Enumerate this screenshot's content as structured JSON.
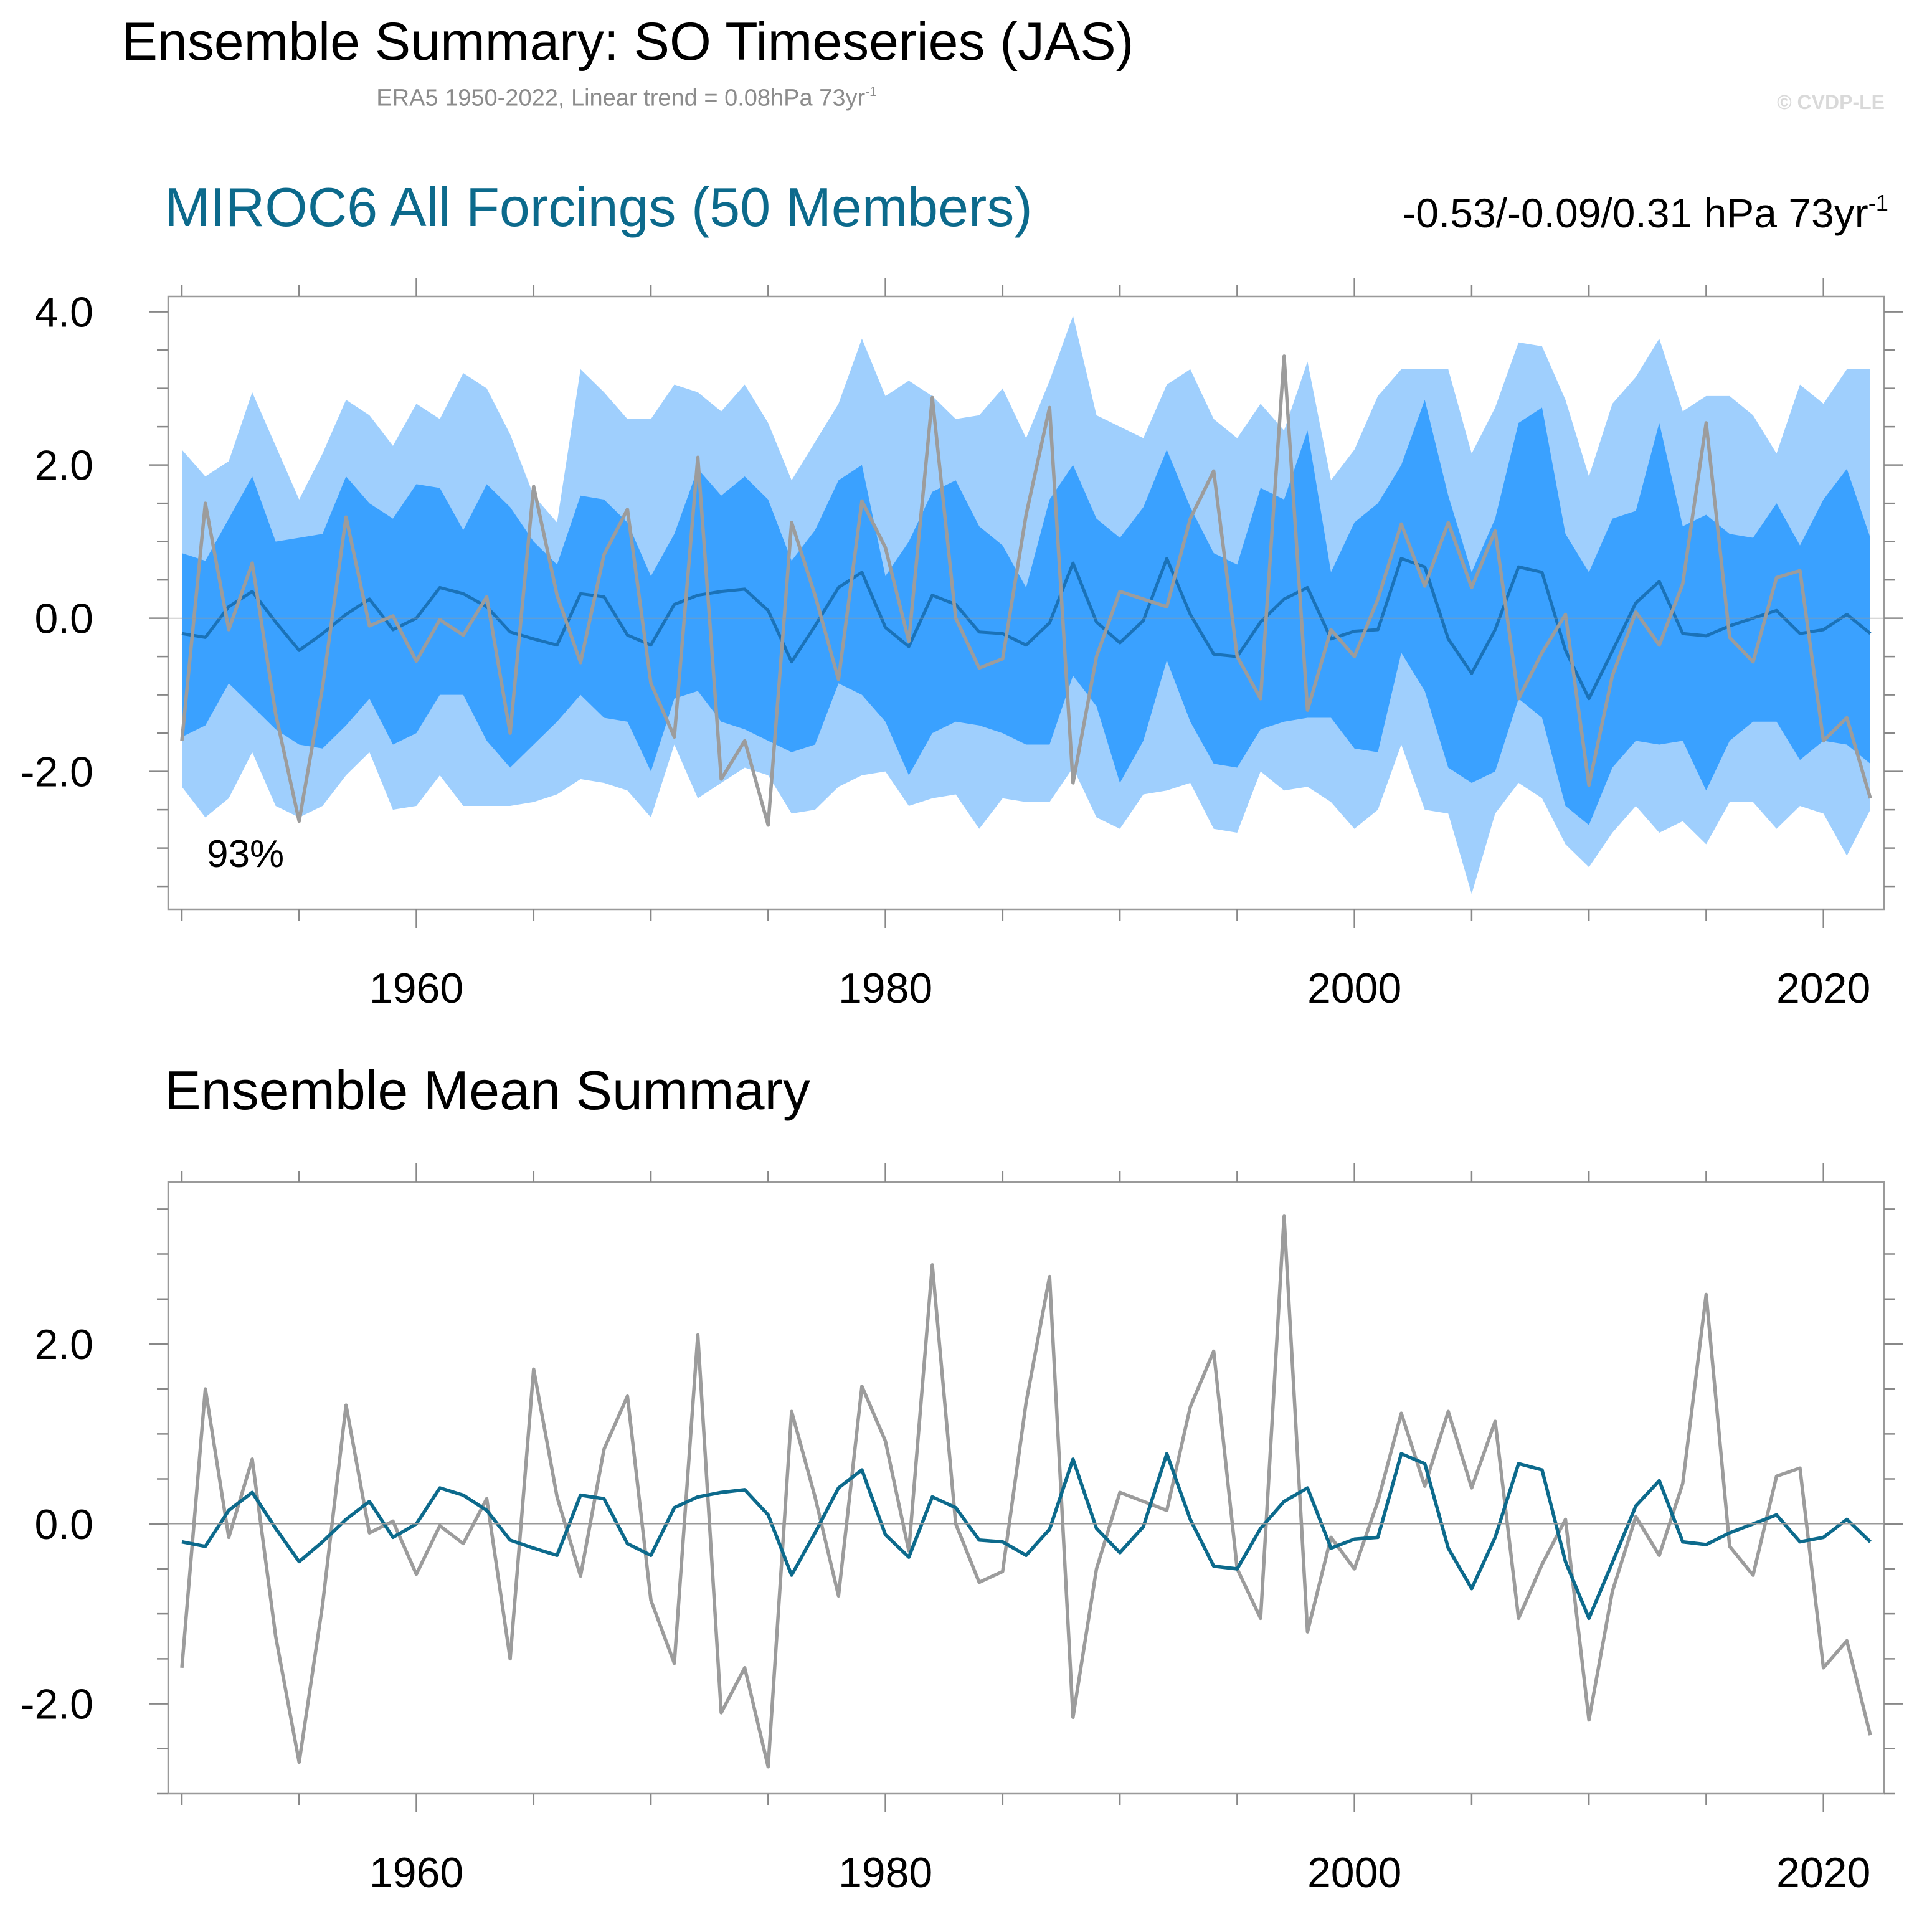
{
  "header": {
    "title": "Ensemble Summary: SO Timeseries (JAS)",
    "subtitle_prefix": "ERA5 1950-2022, Linear trend = 0.08hPa 73yr",
    "subtitle_sup": "-1",
    "copyright": "© CVDP-LE"
  },
  "colors": {
    "band_outer": "#9fcffd",
    "band_inner": "#3aa1ff",
    "ensemble_mean_top": "#1a72b8",
    "ensemble_mean_bottom": "#0c6a8c",
    "observations": "#9c9c9c",
    "frame": "#9a9a9a",
    "title_accent": "#0c6a8c"
  },
  "panel1": {
    "title": "MIROC6 All Forcings (50 Members)",
    "trend_text": "-0.53/-0.09/0.31 hPa 73yr",
    "trend_sup": "-1",
    "percent_label": "93%"
  },
  "panel2": {
    "title": "Ensemble Mean Summary"
  },
  "chart_data": [
    {
      "type": "area",
      "xlim": [
        1950,
        2022
      ],
      "ylim": [
        -3.8,
        4.2
      ],
      "xticks": [
        1960,
        1980,
        2000,
        2020
      ],
      "xtick_labels": [
        "1960",
        "1980",
        "2000",
        "2020"
      ],
      "yticks": [
        4.0,
        2.0,
        0.0,
        -2.0
      ],
      "ytick_labels": [
        "4.0",
        "2.0",
        "0.0",
        "-2.0"
      ],
      "zero_line": true,
      "x": [
        1950,
        1951,
        1952,
        1953,
        1954,
        1955,
        1956,
        1957,
        1958,
        1959,
        1960,
        1961,
        1962,
        1963,
        1964,
        1965,
        1966,
        1967,
        1968,
        1969,
        1970,
        1971,
        1972,
        1973,
        1974,
        1975,
        1976,
        1977,
        1978,
        1979,
        1980,
        1981,
        1982,
        1983,
        1984,
        1985,
        1986,
        1987,
        1988,
        1989,
        1990,
        1991,
        1992,
        1993,
        1994,
        1995,
        1996,
        1997,
        1998,
        1999,
        2000,
        2001,
        2002,
        2003,
        2004,
        2005,
        2006,
        2007,
        2008,
        2009,
        2010,
        2011,
        2012,
        2013,
        2014,
        2015,
        2016,
        2017,
        2018,
        2019,
        2020,
        2021,
        2022
      ],
      "outer_upper": [
        2.2,
        1.85,
        2.05,
        2.95,
        2.25,
        1.55,
        2.15,
        2.85,
        2.65,
        2.25,
        2.8,
        2.6,
        3.2,
        3.0,
        2.4,
        1.6,
        1.25,
        3.25,
        2.95,
        2.6,
        2.6,
        3.05,
        2.95,
        2.7,
        3.05,
        2.55,
        1.8,
        2.3,
        2.8,
        3.65,
        2.9,
        3.1,
        2.9,
        2.6,
        2.65,
        3.0,
        2.35,
        3.1,
        3.95,
        2.65,
        2.5,
        2.35,
        3.05,
        3.25,
        2.6,
        2.35,
        2.8,
        2.45,
        3.35,
        1.8,
        2.2,
        2.9,
        3.25,
        3.25,
        3.25,
        2.15,
        2.75,
        3.6,
        3.55,
        2.85,
        1.85,
        2.8,
        3.15,
        3.65,
        2.7,
        2.9,
        2.9,
        2.65,
        2.15,
        3.05,
        2.8,
        3.25,
        3.25
      ],
      "inner_upper": [
        0.85,
        0.75,
        1.3,
        1.85,
        1.0,
        1.05,
        1.1,
        1.85,
        1.5,
        1.3,
        1.75,
        1.7,
        1.15,
        1.75,
        1.45,
        1.0,
        0.7,
        1.6,
        1.55,
        1.25,
        0.55,
        1.1,
        1.95,
        1.6,
        1.85,
        1.55,
        0.75,
        1.15,
        1.8,
        2.0,
        0.55,
        1.0,
        1.65,
        1.8,
        1.2,
        0.95,
        0.4,
        1.55,
        2.0,
        1.3,
        1.05,
        1.45,
        2.2,
        1.45,
        0.85,
        0.7,
        1.7,
        1.55,
        2.45,
        0.6,
        1.25,
        1.5,
        2.0,
        2.85,
        1.6,
        0.6,
        1.3,
        2.55,
        2.75,
        1.1,
        0.6,
        1.3,
        1.4,
        2.55,
        1.2,
        1.35,
        1.1,
        1.05,
        1.5,
        0.95,
        1.55,
        1.95,
        1.05
      ],
      "ensemble_mean": [
        -0.2,
        -0.25,
        0.15,
        0.35,
        -0.05,
        -0.42,
        -0.2,
        0.05,
        0.25,
        -0.15,
        0.0,
        0.4,
        0.32,
        0.15,
        -0.18,
        -0.27,
        -0.35,
        0.32,
        0.28,
        -0.22,
        -0.35,
        0.18,
        0.3,
        0.35,
        0.38,
        0.1,
        -0.57,
        -0.1,
        0.4,
        0.6,
        -0.12,
        -0.37,
        0.3,
        0.18,
        -0.18,
        -0.2,
        -0.35,
        -0.06,
        0.72,
        -0.05,
        -0.32,
        -0.03,
        0.78,
        0.05,
        -0.47,
        -0.5,
        -0.05,
        0.25,
        0.4,
        -0.27,
        -0.17,
        -0.15,
        0.78,
        0.67,
        -0.27,
        -0.72,
        -0.15,
        0.67,
        0.6,
        -0.42,
        -1.05,
        -0.43,
        0.2,
        0.48,
        -0.2,
        -0.23,
        -0.1,
        0.0,
        0.1,
        -0.2,
        -0.15,
        0.05,
        -0.2
      ],
      "inner_lower": [
        -1.55,
        -1.4,
        -0.85,
        -1.15,
        -1.45,
        -1.65,
        -1.7,
        -1.4,
        -1.05,
        -1.65,
        -1.5,
        -1.0,
        -1.0,
        -1.6,
        -1.95,
        -1.65,
        -1.35,
        -1.0,
        -1.3,
        -1.35,
        -2.0,
        -1.05,
        -0.95,
        -1.35,
        -1.45,
        -1.6,
        -1.75,
        -1.65,
        -0.85,
        -1.0,
        -1.35,
        -2.05,
        -1.5,
        -1.35,
        -1.4,
        -1.5,
        -1.65,
        -1.65,
        -0.75,
        -1.15,
        -2.15,
        -1.6,
        -0.55,
        -1.35,
        -1.9,
        -1.95,
        -1.45,
        -1.35,
        -1.3,
        -1.3,
        -1.7,
        -1.75,
        -0.45,
        -0.95,
        -1.95,
        -2.15,
        -2.0,
        -1.05,
        -1.3,
        -2.45,
        -2.7,
        -1.95,
        -1.6,
        -1.65,
        -1.6,
        -2.25,
        -1.6,
        -1.35,
        -1.35,
        -1.85,
        -1.6,
        -1.65,
        -1.9
      ],
      "outer_lower": [
        -2.2,
        -2.6,
        -2.35,
        -1.75,
        -2.45,
        -2.6,
        -2.45,
        -2.05,
        -1.75,
        -2.5,
        -2.45,
        -2.05,
        -2.45,
        -2.45,
        -2.45,
        -2.4,
        -2.3,
        -2.1,
        -2.15,
        -2.25,
        -2.6,
        -1.65,
        -2.35,
        -2.15,
        -1.95,
        -2.05,
        -2.55,
        -2.5,
        -2.2,
        -2.05,
        -2.0,
        -2.45,
        -2.35,
        -2.3,
        -2.75,
        -2.35,
        -2.4,
        -2.4,
        -1.95,
        -2.6,
        -2.75,
        -2.3,
        -2.25,
        -2.15,
        -2.75,
        -2.8,
        -2.0,
        -2.25,
        -2.2,
        -2.4,
        -2.75,
        -2.5,
        -1.65,
        -2.5,
        -2.55,
        -3.6,
        -2.55,
        -2.15,
        -2.35,
        -2.95,
        -3.25,
        -2.8,
        -2.45,
        -2.8,
        -2.65,
        -2.95,
        -2.4,
        -2.4,
        -2.75,
        -2.45,
        -2.55,
        -3.1,
        -2.5
      ],
      "observations": [
        -1.6,
        1.5,
        -0.15,
        0.72,
        -1.25,
        -2.65,
        -0.9,
        1.32,
        -0.1,
        0.03,
        -0.56,
        -0.02,
        -0.22,
        0.28,
        -1.5,
        1.72,
        0.3,
        -0.58,
        0.83,
        1.42,
        -0.85,
        -1.55,
        2.1,
        -2.1,
        -1.6,
        -2.7,
        1.25,
        0.3,
        -0.8,
        1.53,
        0.92,
        -0.3,
        2.88,
        0.0,
        -0.65,
        -0.53,
        1.35,
        2.75,
        -2.15,
        -0.5,
        0.35,
        0.25,
        0.15,
        1.3,
        1.92,
        -0.5,
        -1.05,
        3.42,
        -1.2,
        -0.15,
        -0.5,
        0.25,
        1.23,
        0.42,
        1.25,
        0.4,
        1.14,
        -1.05,
        -0.45,
        0.05,
        -2.18,
        -0.75,
        0.08,
        -0.35,
        0.45,
        2.55,
        -0.25,
        -0.57,
        0.53,
        0.62,
        -1.6,
        -1.3,
        -2.35
      ]
    },
    {
      "type": "line",
      "xlim": [
        1950,
        2022
      ],
      "ylim": [
        -3.0,
        3.8
      ],
      "xticks": [
        1960,
        1980,
        2000,
        2020
      ],
      "xtick_labels": [
        "1960",
        "1980",
        "2000",
        "2020"
      ],
      "yticks": [
        2.0,
        0.0,
        -2.0
      ],
      "ytick_labels": [
        "2.0",
        "0.0",
        "-2.0"
      ],
      "zero_line": true
    }
  ]
}
